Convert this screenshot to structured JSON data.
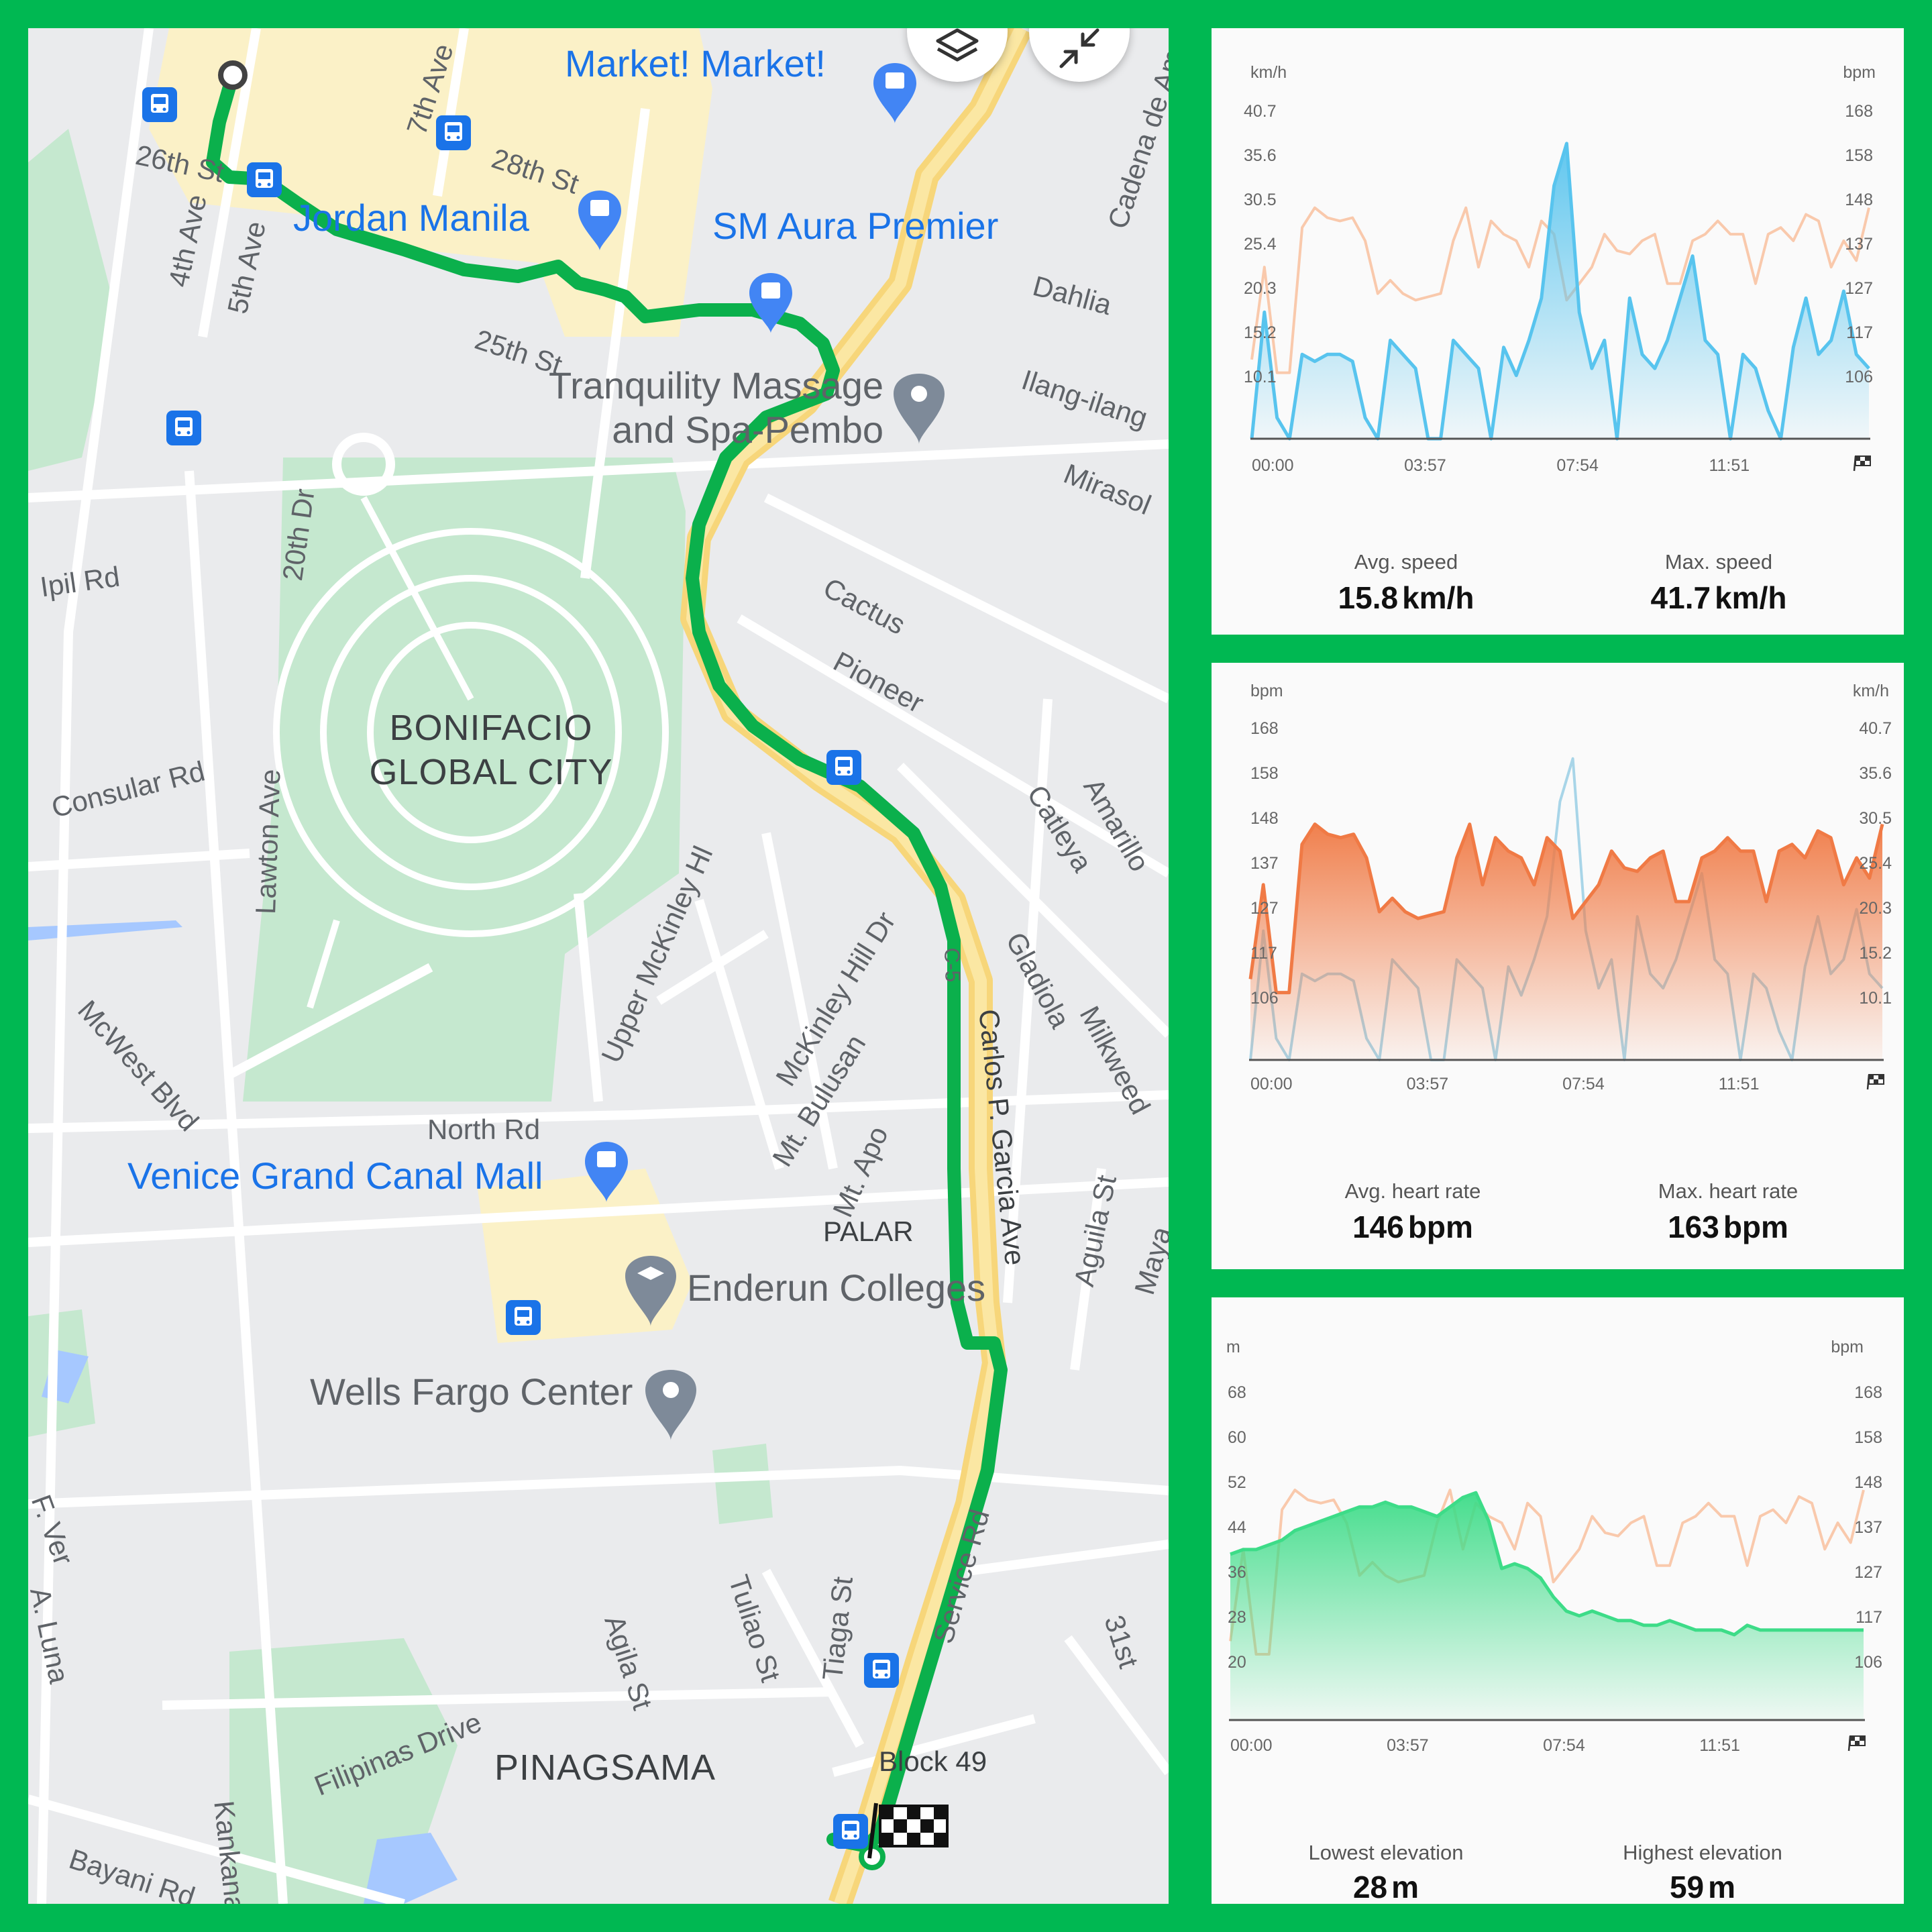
{
  "map": {
    "street_labels": [
      "26th St",
      "28th St",
      "7th Ave",
      "4th Ave",
      "5th Ave",
      "25th St",
      "Cadena de Amor",
      "Dahlia",
      "Ilang-ilang",
      "Mirasol",
      "Cactus",
      "Pioneer",
      "Ipil Rd",
      "20th Dr",
      "Consular Rd",
      "Lawton Ave",
      "Catleya",
      "Amarillo",
      "Upper McKinley Hl",
      "McKinley Hill Dr",
      "Mt. Bulusan",
      "Mt. Apo",
      "Gladiola",
      "Milkweed",
      "McWest Blvd",
      "North Rd",
      "C-5",
      "Carlos P. Garcia Ave",
      "Aguila St",
      "Maya",
      "F. Ver",
      "A. Luna",
      "Agila St",
      "Tuliao St",
      "Tiaga St",
      "Service Rd",
      "31st",
      "Filipinas Drive",
      "Block 49",
      "Bayani Rd",
      "Kankanai",
      "PALAR"
    ],
    "poi_labels": [
      "Market! Market!",
      "Jordan Manila",
      "SM Aura Premier",
      "Venice Grand Canal Mall",
      "Enderun Colleges"
    ],
    "place_labels": [
      "Tranquility Massage and Spa-Pembo",
      "Wells Fargo Center"
    ],
    "area_labels": [
      "BONIFACIO GLOBAL CITY",
      "PINAGSAMA"
    ],
    "buttons": {
      "layers": "layers-icon",
      "collapse": "collapse-icon"
    },
    "route_color": "#0bb04c"
  },
  "speed_card": {
    "left_unit": "km/h",
    "right_unit": "bpm",
    "stats": [
      {
        "label": "Avg. speed",
        "value": "15.8",
        "unit": "km/h"
      },
      {
        "label": "Max. speed",
        "value": "41.7",
        "unit": "km/h"
      }
    ]
  },
  "heart_card": {
    "left_unit": "bpm",
    "right_unit": "km/h",
    "stats": [
      {
        "label": "Avg. heart rate",
        "value": "146",
        "unit": "bpm"
      },
      {
        "label": "Max. heart rate",
        "value": "163",
        "unit": "bpm"
      }
    ]
  },
  "elev_card": {
    "left_unit": "m",
    "right_unit": "bpm",
    "stats": [
      {
        "label": "Lowest elevation",
        "value": "28",
        "unit": "m"
      },
      {
        "label": "Highest elevation",
        "value": "59",
        "unit": "m"
      }
    ]
  },
  "chart_data": [
    {
      "type": "area",
      "primary": "speed",
      "x_ticks": [
        "00:00",
        "03:57",
        "07:54",
        "11:51"
      ],
      "end_icon": "finish-flag-icon",
      "y_left": {
        "unit": "km/h",
        "ticks": [
          "40.7",
          "35.6",
          "30.5",
          "25.4",
          "20.3",
          "15.2",
          "10.1"
        ],
        "range": [
          0,
          46
        ]
      },
      "y_right": {
        "unit": "bpm",
        "ticks": [
          "168",
          "158",
          "148",
          "137",
          "127",
          "117",
          "106"
        ],
        "range": [
          88,
          186
        ]
      },
      "colors": {
        "primary": "#58c4ee",
        "secondary": "#f9c9ac"
      },
      "series": [
        {
          "values": [
            0,
            18,
            3,
            0,
            12,
            11,
            12,
            12,
            11,
            3,
            0,
            14,
            12,
            10,
            0,
            0,
            14,
            12,
            10,
            0,
            13,
            9,
            14,
            20,
            36,
            42,
            18,
            10,
            14,
            0,
            20,
            12,
            10,
            14,
            20,
            26,
            14,
            12,
            0,
            12,
            10,
            4,
            0,
            13,
            20,
            12,
            14,
            21,
            12,
            10
          ]
        },
        {
          "values": [
            112,
            140,
            108,
            108,
            152,
            158,
            155,
            154,
            155,
            148,
            132,
            136,
            132,
            130,
            131,
            132,
            148,
            158,
            140,
            154,
            150,
            148,
            140,
            154,
            150,
            130,
            135,
            140,
            150,
            145,
            144,
            148,
            150,
            135,
            135,
            148,
            150,
            154,
            150,
            150,
            135,
            150,
            152,
            148,
            156,
            154,
            140,
            148,
            142,
            158
          ]
        }
      ]
    },
    {
      "type": "area",
      "primary": "heart rate",
      "x_ticks": [
        "00:00",
        "03:57",
        "07:54",
        "11:51"
      ],
      "end_icon": "finish-flag-icon",
      "y_left": {
        "unit": "bpm",
        "ticks": [
          "168",
          "158",
          "148",
          "137",
          "127",
          "117",
          "106"
        ],
        "range": [
          88,
          186
        ]
      },
      "y_right": {
        "unit": "km/h",
        "ticks": [
          "40.7",
          "35.6",
          "30.5",
          "25.4",
          "20.3",
          "15.2",
          "10.1"
        ],
        "range": [
          0,
          46
        ]
      },
      "colors": {
        "primary": "#f07a45",
        "secondary": "#a8d5e8"
      },
      "series": [
        {
          "values": [
            112,
            140,
            108,
            108,
            152,
            158,
            155,
            154,
            155,
            148,
            132,
            136,
            132,
            130,
            131,
            132,
            148,
            158,
            140,
            154,
            150,
            148,
            140,
            154,
            150,
            130,
            135,
            140,
            150,
            145,
            144,
            148,
            150,
            135,
            135,
            148,
            150,
            154,
            150,
            150,
            135,
            150,
            152,
            148,
            156,
            154,
            140,
            148,
            142,
            158
          ]
        },
        {
          "values": [
            0,
            18,
            3,
            0,
            12,
            11,
            12,
            12,
            11,
            3,
            0,
            14,
            12,
            10,
            0,
            0,
            14,
            12,
            10,
            0,
            13,
            9,
            14,
            20,
            36,
            42,
            18,
            10,
            14,
            0,
            20,
            12,
            10,
            14,
            20,
            26,
            14,
            12,
            0,
            12,
            10,
            4,
            0,
            13,
            20,
            12,
            14,
            21,
            12,
            10
          ]
        }
      ]
    },
    {
      "type": "area",
      "primary": "elevation",
      "x_ticks": [
        "00:00",
        "03:57",
        "07:54",
        "11:51"
      ],
      "end_icon": "finish-flag-icon",
      "y_left": {
        "unit": "m",
        "ticks": [
          "68",
          "60",
          "52",
          "44",
          "36",
          "28",
          "20"
        ],
        "range": [
          10,
          78
        ]
      },
      "y_right": {
        "unit": "bpm",
        "ticks": [
          "168",
          "158",
          "148",
          "137",
          "127",
          "117",
          "106"
        ],
        "range": [
          88,
          186
        ]
      },
      "colors": {
        "primary": "#3ddc88",
        "secondary": "#f9c9ac"
      },
      "series": [
        {
          "values": [
            45,
            46,
            46,
            47,
            48,
            50,
            51,
            52,
            53,
            54,
            55,
            55,
            56,
            55,
            55,
            54,
            53,
            55,
            57,
            58,
            52,
            42,
            43,
            42,
            40,
            36,
            33,
            32,
            33,
            32,
            31,
            31,
            30,
            30,
            31,
            30,
            29,
            29,
            29,
            28,
            30,
            29,
            29,
            29,
            29,
            29,
            29,
            29,
            29,
            29
          ]
        },
        {
          "values": [
            112,
            140,
            108,
            108,
            152,
            158,
            155,
            154,
            155,
            148,
            132,
            136,
            132,
            130,
            131,
            132,
            148,
            158,
            140,
            154,
            150,
            148,
            140,
            154,
            150,
            130,
            135,
            140,
            150,
            145,
            144,
            148,
            150,
            135,
            135,
            148,
            150,
            154,
            150,
            150,
            135,
            150,
            152,
            148,
            156,
            154,
            140,
            148,
            142,
            158
          ]
        }
      ]
    }
  ]
}
